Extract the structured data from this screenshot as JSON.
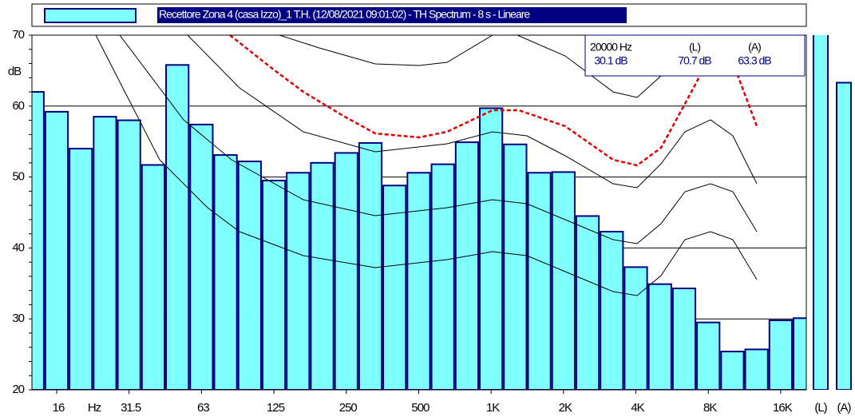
{
  "chart_data": {
    "type": "bar",
    "title": "Recettore Zona 4 (casa Izzo)_1  T.H. (12/08/2021 09:01:02) - TH Spectrum - 8 s - Lineare",
    "y_label": "dB",
    "x_unit": "Hz",
    "categories": [
      null,
      "16",
      null,
      null,
      "31.5",
      null,
      null,
      "63",
      null,
      null,
      "125",
      null,
      null,
      "250",
      null,
      null,
      "500",
      null,
      null,
      "1K",
      null,
      null,
      "2K",
      null,
      null,
      "4K",
      null,
      null,
      "8K",
      null,
      null,
      "16K",
      null
    ],
    "values": [
      62,
      59.2,
      54,
      58.5,
      58,
      51.7,
      65.8,
      57.4,
      53.1,
      52.2,
      49.5,
      50.6,
      52,
      53.4,
      54.8,
      48.8,
      50.6,
      51.8,
      54.9,
      59.7,
      54.6,
      50.6,
      50.7,
      44.5,
      42.3,
      37.3,
      34.9,
      34.3,
      29.5,
      25.4,
      25.7,
      29.8,
      30.1
    ],
    "color": "#80ffff",
    "edge_color": "#000080",
    "ylim": [
      20,
      70
    ],
    "yticks": [
      20,
      30,
      40,
      50,
      60,
      70
    ],
    "grid": true,
    "cursor_label": "20000 Hz",
    "cursor_value_label": "30.1 dB",
    "totals": {
      "categories": [
        "(L)",
        "(A)"
      ],
      "values": [
        70.7,
        63.3
      ],
      "value_labels": [
        "70.7 dB",
        "63.3 dB"
      ]
    }
  }
}
